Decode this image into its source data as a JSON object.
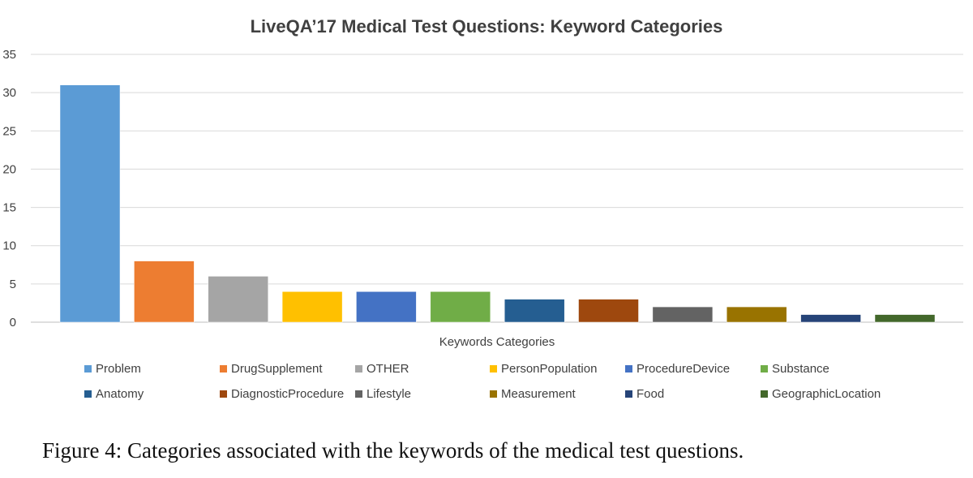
{
  "chart_data": {
    "type": "bar",
    "title": "LiveQA’17 Medical Test Questions: Keyword Categories",
    "xlabel": "Keywords Categories",
    "ylabel": "",
    "ylim": [
      0,
      35
    ],
    "yticks": [
      0,
      5,
      10,
      15,
      20,
      25,
      30,
      35
    ],
    "grid": true,
    "legend_position": "bottom",
    "categories": [
      "Problem",
      "DrugSupplement",
      "OTHER",
      "PersonPopulation",
      "ProcedureDevice",
      "Substance",
      "Anatomy",
      "DiagnosticProcedure",
      "Lifestyle",
      "Measurement",
      "Food",
      "GeographicLocation"
    ],
    "values": [
      31,
      8,
      6,
      4,
      4,
      4,
      3,
      3,
      2,
      2,
      1,
      1
    ],
    "colors": [
      "#5b9bd5",
      "#ed7d31",
      "#a5a5a5",
      "#ffc000",
      "#4472c4",
      "#70ad47",
      "#255e91",
      "#9e480e",
      "#636363",
      "#997300",
      "#264478",
      "#43682b"
    ]
  },
  "caption": "Figure 4: Categories associated with the keywords of the medical test questions."
}
